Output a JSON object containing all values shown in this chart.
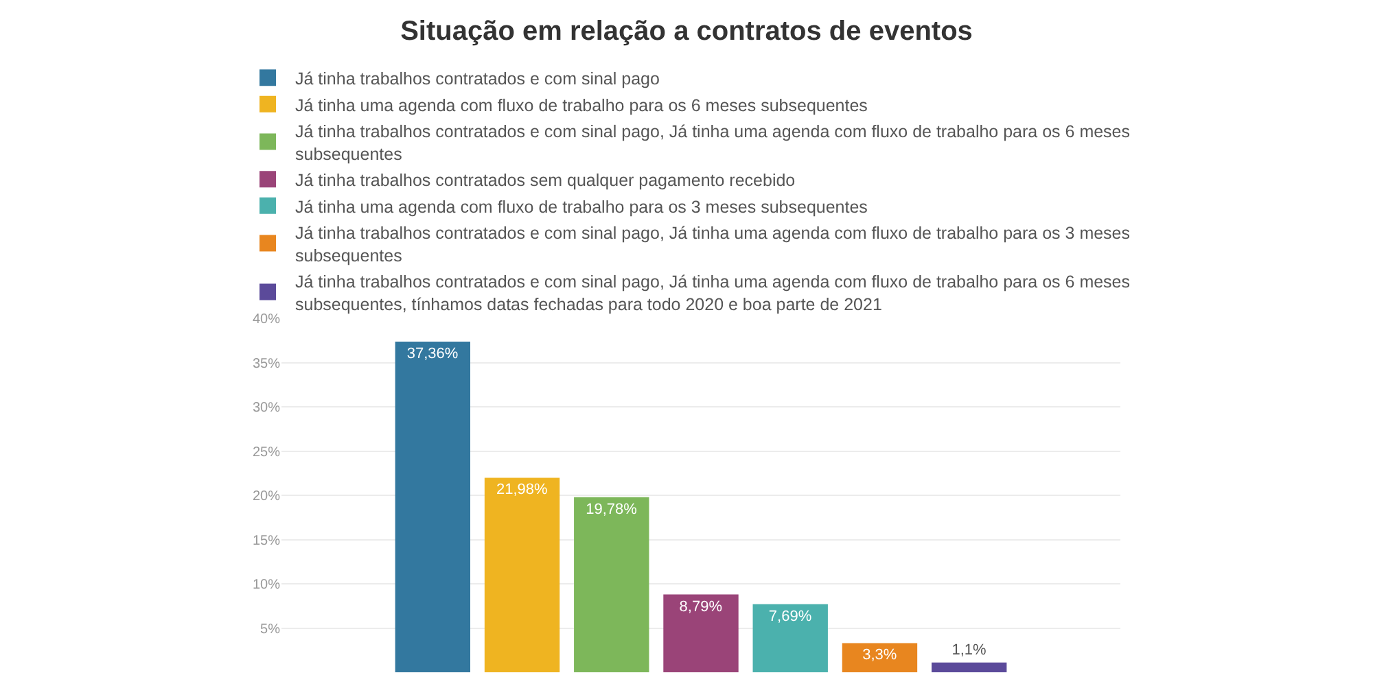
{
  "chart_data": {
    "type": "bar",
    "title": "Situação em relação a contratos de eventos",
    "categories": [
      null
    ],
    "series": [
      {
        "name": "Já tinha trabalhos contratados e com sinal pago",
        "color": "#33789f",
        "values": [
          37.36
        ],
        "value_labels": [
          "37,36%"
        ]
      },
      {
        "name": "Já tinha uma agenda com fluxo de trabalho para os 6 meses subsequentes",
        "color": "#efb421",
        "values": [
          21.98
        ],
        "value_labels": [
          "21,98%"
        ]
      },
      {
        "name": "Já tinha trabalhos contratados e com sinal pago, Já tinha uma agenda com fluxo de trabalho para os 6 meses subsequentes",
        "color": "#7db75a",
        "values": [
          19.78
        ],
        "value_labels": [
          "19,78%"
        ]
      },
      {
        "name": "Já tinha trabalhos contratados sem qualquer pagamento recebido",
        "color": "#9a4478",
        "values": [
          8.79
        ],
        "value_labels": [
          "8,79%"
        ]
      },
      {
        "name": "Já tinha uma agenda com fluxo de trabalho para os 3 meses subsequentes",
        "color": "#4bb1ad",
        "values": [
          7.69
        ],
        "value_labels": [
          "7,69%"
        ]
      },
      {
        "name": "Já tinha trabalhos contratados e com sinal pago, Já tinha uma agenda com fluxo de trabalho para os 3 meses subsequentes",
        "color": "#e8861f",
        "values": [
          3.3
        ],
        "value_labels": [
          "3,3%"
        ]
      },
      {
        "name": "Já tinha trabalhos contratados e com sinal pago, Já tinha uma agenda com fluxo de trabalho para os 6 meses subsequentes, tínhamos datas fechadas para todo 2020 e boa parte de 2021",
        "color": "#5b4a9a",
        "values": [
          1.1
        ],
        "value_labels": [
          "1,1%"
        ]
      }
    ],
    "ylim": [
      0,
      40
    ],
    "yticks": [
      {
        "value": 5,
        "label": "5%"
      },
      {
        "value": 10,
        "label": "10%"
      },
      {
        "value": 15,
        "label": "15%"
      },
      {
        "value": 20,
        "label": "20%"
      },
      {
        "value": 25,
        "label": "25%"
      },
      {
        "value": 30,
        "label": "30%"
      },
      {
        "value": 35,
        "label": "35%"
      },
      {
        "value": 40,
        "label": "40%"
      }
    ],
    "grid": "y",
    "legend": "top",
    "tick_labels": "y"
  }
}
